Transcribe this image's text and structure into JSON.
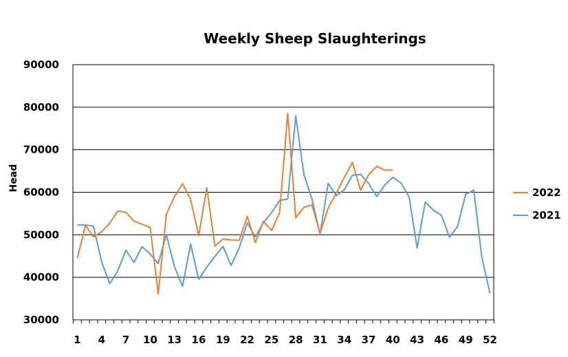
{
  "chart_data": {
    "type": "line",
    "title": "Weekly Sheep Slaughterings",
    "ylabel": "Head",
    "xlabel": "",
    "ylim": [
      30000,
      90000
    ],
    "yticks": [
      30000,
      40000,
      50000,
      60000,
      70000,
      80000,
      90000
    ],
    "ytick_labels": [
      "30000",
      "40000",
      "50000",
      "60000",
      "70000",
      "80000",
      "90000"
    ],
    "xlim": [
      1,
      52
    ],
    "xticks": [
      1,
      4,
      7,
      10,
      13,
      16,
      19,
      22,
      25,
      28,
      31,
      34,
      37,
      40,
      43,
      46,
      49,
      52
    ],
    "xtick_labels": [
      "1",
      "4",
      "7",
      "10",
      "13",
      "16",
      "19",
      "22",
      "25",
      "28",
      "31",
      "34",
      "37",
      "40",
      "43",
      "46",
      "49",
      "52"
    ],
    "grid": "horizontal",
    "legend": "right",
    "series": [
      {
        "name": "2022",
        "color": "#ED7D31",
        "x": [
          1,
          2,
          3,
          4,
          5,
          6,
          7,
          8,
          9,
          10,
          11,
          12,
          13,
          14,
          15,
          16,
          17,
          18,
          19,
          20,
          21,
          22,
          23,
          24,
          25,
          26,
          27,
          28,
          29,
          30,
          31,
          32,
          33,
          34,
          35,
          36,
          37,
          38,
          39,
          40
        ],
        "values": [
          44500,
          52200,
          49500,
          50700,
          52700,
          55600,
          55300,
          53200,
          52500,
          51700,
          36100,
          54800,
          59000,
          62000,
          58300,
          49800,
          61100,
          47300,
          49000,
          48800,
          48700,
          54300,
          48200,
          53200,
          51000,
          55200,
          78600,
          54000,
          56500,
          57000,
          50300,
          56300,
          59800,
          63500,
          67000,
          60500,
          64100,
          66100,
          65200,
          65200
        ]
      },
      {
        "name": "2021",
        "color": "#5B9BD5",
        "x": [
          1,
          2,
          3,
          4,
          5,
          6,
          7,
          8,
          9,
          10,
          11,
          12,
          13,
          14,
          15,
          16,
          17,
          18,
          19,
          20,
          21,
          22,
          23,
          24,
          25,
          26,
          27,
          28,
          29,
          30,
          31,
          32,
          33,
          34,
          35,
          36,
          37,
          38,
          39,
          40,
          41,
          42,
          43,
          44,
          45,
          46,
          47,
          48,
          49,
          50,
          51,
          52
        ],
        "values": [
          52300,
          52300,
          52000,
          43600,
          38500,
          41500,
          46400,
          43500,
          47200,
          45500,
          43200,
          50000,
          42500,
          37900,
          47800,
          39500,
          42400,
          44900,
          47300,
          42800,
          46900,
          52800,
          49500,
          52900,
          55200,
          58100,
          58400,
          78000,
          64200,
          58400,
          50100,
          62100,
          59200,
          60600,
          64000,
          64200,
          62100,
          59000,
          61700,
          63500,
          62200,
          58900,
          46900,
          57700,
          55800,
          54600,
          49400,
          52000,
          59500,
          60500,
          44700,
          36200
        ]
      }
    ]
  }
}
